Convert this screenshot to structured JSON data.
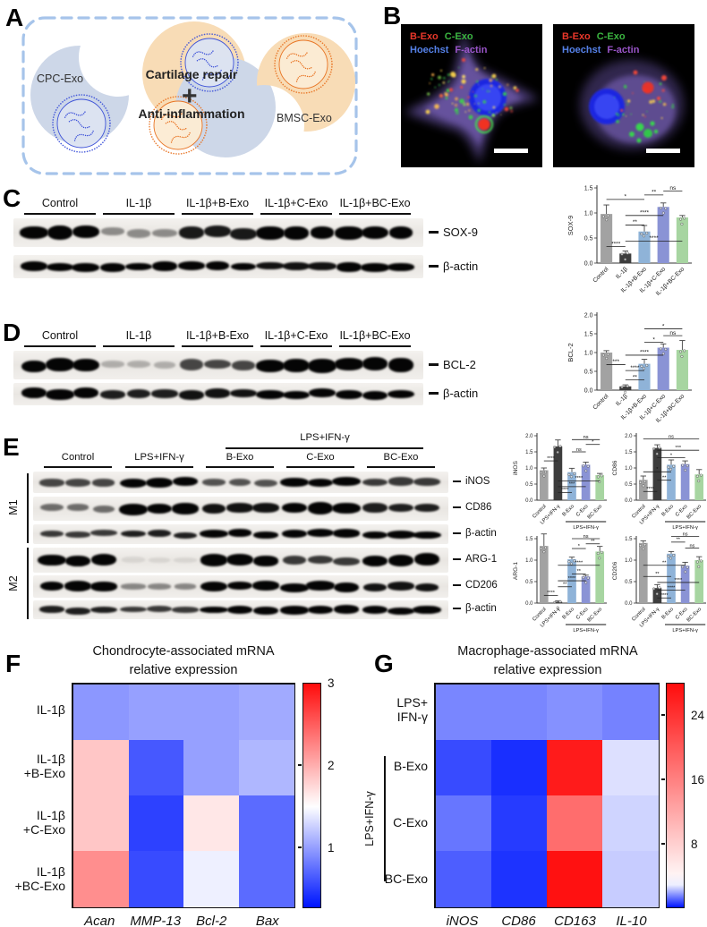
{
  "figure": {
    "bar_colors": [
      "#a2a2a2",
      "#3d3d3d",
      "#8fb3d8",
      "#8a93d5",
      "#a7d5a1"
    ],
    "panelA": {
      "letter": "A",
      "cpc_label": "CPC-Exo",
      "bmsc_label": "BMSC-Exo",
      "center_top": "Cartilage repair",
      "plus": "+",
      "center_bottom": "Anti-inflammation",
      "colors": {
        "blue_blob": "#cdd7e8",
        "orange_blob": "#f8dcb6",
        "blue_line": "#3a4fd8",
        "orange_line": "#e8711f",
        "blue_fill": "#dde4f2",
        "orange_fill": "#fcecd4",
        "border": "#a6c4ea"
      }
    },
    "panelB": {
      "letter": "B",
      "legend_line1": [
        {
          "text": "B-Exo",
          "color": "#e8372a"
        },
        {
          "text": "C-Exo",
          "color": "#3bb540"
        }
      ],
      "legend_line2": [
        {
          "text": "Hoechst",
          "color": "#5581e8"
        },
        {
          "text": "F-actin",
          "color": "#9a55c9"
        }
      ]
    },
    "panelC": {
      "letter": "C",
      "groups": [
        "Control",
        "IL-1β",
        "IL-1β+B-Exo",
        "IL-1β+C-Exo",
        "IL-1β+BC-Exo"
      ],
      "blot_rows": [
        {
          "label": "SOX-9",
          "intensities": [
            1,
            0.28,
            0.72,
            0.95,
            0.85
          ]
        },
        {
          "label": "β-actin",
          "intensities": [
            0.95,
            0.85,
            0.8,
            0.75,
            0.85
          ]
        }
      ],
      "chart": {
        "type": "bar",
        "ylabel": "SOX-9",
        "ymax": 1.5,
        "ystep": 0.5,
        "categories": [
          "Control",
          "IL-1β",
          "IL-1β+B-Exo",
          "IL-1β+C-Exo",
          "IL-1β+BC-Exo"
        ],
        "values": [
          0.98,
          0.19,
          0.63,
          1.12,
          0.91
        ],
        "errors": [
          0.18,
          0.05,
          0.12,
          0.08,
          0.04
        ],
        "sig": [
          {
            "a": 0,
            "b": 1,
            "y": 0.33,
            "t": "****"
          },
          {
            "a": 1,
            "b": 2,
            "y": 0.76,
            "t": "**"
          },
          {
            "a": 1,
            "b": 3,
            "y": 0.95,
            "t": "****"
          },
          {
            "a": 1,
            "b": 4,
            "y": 0.44,
            "t": "****"
          },
          {
            "a": 0,
            "b": 2,
            "y": 1.27,
            "t": "*"
          },
          {
            "a": 2,
            "b": 3,
            "y": 1.36,
            "t": "**"
          },
          {
            "a": 3,
            "b": 4,
            "y": 1.44,
            "t": "ns"
          }
        ]
      }
    },
    "panelD": {
      "letter": "D",
      "groups": [
        "Control",
        "IL-1β",
        "IL-1β+B-Exo",
        "IL-1β+C-Exo",
        "IL-1β+BC-Exo"
      ],
      "blot_rows": [
        {
          "label": "BCL-2",
          "intensities": [
            1,
            0.15,
            0.55,
            1,
            0.95
          ]
        },
        {
          "label": "β-actin",
          "intensities": [
            1,
            0.7,
            0.75,
            0.95,
            0.9
          ]
        }
      ],
      "chart": {
        "type": "bar",
        "ylabel": "BCL-2",
        "ymax": 2,
        "ystep": 0.5,
        "categories": [
          "Control",
          "IL-1β",
          "IL-1β+B-Exo",
          "IL-1β+C-Exo",
          "IL-1β+BC-Exo"
        ],
        "values": [
          1.0,
          0.1,
          0.7,
          1.13,
          1.07
        ],
        "errors": [
          0.05,
          0.04,
          0.12,
          0.1,
          0.25
        ],
        "sig": [
          {
            "a": 0,
            "b": 1,
            "y": 0.68,
            "t": "***"
          },
          {
            "a": 1,
            "b": 2,
            "y": 0.27,
            "t": "**"
          },
          {
            "a": 1,
            "b": 2,
            "y": 0.52,
            "t": "****"
          },
          {
            "a": 1,
            "b": 3,
            "y": 0.93,
            "t": "****"
          },
          {
            "a": 2,
            "b": 3,
            "y": 1.27,
            "t": "*"
          },
          {
            "a": 3,
            "b": 4,
            "y": 1.45,
            "t": "ns"
          },
          {
            "a": 2,
            "b": 4,
            "y": 1.63,
            "t": "*"
          }
        ]
      }
    },
    "panelE": {
      "letter": "E",
      "header": "LPS+IFN-γ",
      "m1_label": "M1",
      "m2_label": "M2",
      "groups": [
        "Control",
        "LPS+IFN-γ",
        "B-Exo",
        "C-Exo",
        "BC-Exo"
      ],
      "blot_rows": [
        {
          "label": "iNOS",
          "intensities": [
            0.55,
            1,
            0.5,
            0.95,
            0.6
          ]
        },
        {
          "label": "CD86",
          "intensities": [
            0.4,
            1,
            0.75,
            1,
            0.7
          ]
        },
        {
          "label": "β-actin",
          "intensities": [
            0.6,
            0.7,
            0.85,
            0.95,
            1
          ]
        },
        {
          "label": "ARG-1",
          "intensities": [
            1,
            0.05,
            0.95,
            0.6,
            1
          ]
        },
        {
          "label": "CD206",
          "intensities": [
            0.9,
            0.3,
            0.95,
            0.9,
            0.75
          ]
        },
        {
          "label": "β-actin",
          "intensities": [
            0.7,
            0.6,
            0.9,
            1,
            0.8
          ]
        }
      ],
      "charts": [
        {
          "type": "bar",
          "ylabel": "iNOS",
          "ymax": 2,
          "ystep": 0.5,
          "categories": [
            "Control",
            "LPS+IFN-γ",
            "B-Exo",
            "C-Exo",
            "BC-Exo"
          ],
          "values": [
            0.93,
            1.67,
            0.87,
            1.1,
            0.78
          ],
          "errors": [
            0.07,
            0.2,
            0.12,
            0.08,
            0.05
          ],
          "bracket": {
            "from": 2,
            "to": 4,
            "label": "LPS+IFN-γ"
          },
          "sig": [
            {
              "a": 0,
              "b": 1,
              "y": 1.22,
              "t": "****"
            },
            {
              "a": 1,
              "b": 2,
              "y": 0.24,
              "t": "****"
            },
            {
              "a": 1,
              "b": 3,
              "y": 0.42,
              "t": "***"
            },
            {
              "a": 1,
              "b": 4,
              "y": 0.6,
              "t": "****"
            },
            {
              "a": 2,
              "b": 3,
              "y": 1.5,
              "t": "ns"
            },
            {
              "a": 3,
              "b": 4,
              "y": 1.73,
              "t": "*"
            },
            {
              "a": 2,
              "b": 4,
              "y": 1.88,
              "t": "ns"
            }
          ]
        },
        {
          "type": "bar",
          "ylabel": "CD86",
          "ymax": 2,
          "ystep": 0.5,
          "categories": [
            "Control",
            "LPS+IFN-γ",
            "B-Exo",
            "C-Exo",
            "BC-Exo"
          ],
          "values": [
            0.63,
            1.62,
            1.1,
            1.12,
            0.8
          ],
          "errors": [
            0.12,
            0.1,
            0.15,
            0.1,
            0.15
          ],
          "bracket": {
            "from": 2,
            "to": 4,
            "label": "LPS+IFN-γ"
          },
          "sig": [
            {
              "a": 0,
              "b": 1,
              "y": 0.27,
              "t": "****"
            },
            {
              "a": 1,
              "b": 2,
              "y": 0.62,
              "t": "**"
            },
            {
              "a": 0,
              "b": 2,
              "y": 0.88,
              "t": "*"
            },
            {
              "a": 1,
              "b": 3,
              "y": 1.32,
              "t": "*"
            },
            {
              "a": 1,
              "b": 4,
              "y": 1.55,
              "t": "***"
            },
            {
              "a": 0,
              "b": 4,
              "y": 1.9,
              "t": "ns"
            }
          ]
        },
        {
          "type": "bar",
          "ylabel": "ARG-1",
          "ymax": 1.5,
          "ystep": 0.5,
          "categories": [
            "Control",
            "LPS+IFN-γ",
            "B-Exo",
            "C-Exo",
            "BC-Exo"
          ],
          "values": [
            1.33,
            0.03,
            1.02,
            0.62,
            1.2
          ],
          "errors": [
            0.28,
            0.02,
            0.05,
            0.03,
            0.12
          ],
          "bracket": {
            "from": 2,
            "to": 4,
            "label": "LPS+IFN-γ"
          },
          "sig": [
            {
              "a": 0,
              "b": 1,
              "y": 0.18,
              "t": "****"
            },
            {
              "a": 1,
              "b": 2,
              "y": 0.38,
              "t": "**"
            },
            {
              "a": 1,
              "b": 3,
              "y": 0.52,
              "t": "****"
            },
            {
              "a": 2,
              "b": 3,
              "y": 0.68,
              "t": "**"
            },
            {
              "a": 1,
              "b": 4,
              "y": 0.88,
              "t": "****"
            },
            {
              "a": 2,
              "b": 3,
              "y": 1.27,
              "t": "*"
            },
            {
              "a": 3,
              "b": 4,
              "y": 1.38,
              "t": "**"
            },
            {
              "a": 2,
              "b": 4,
              "y": 1.5,
              "t": "ns"
            }
          ]
        },
        {
          "type": "bar",
          "ylabel": "CD206",
          "ymax": 1.5,
          "ystep": 0.5,
          "categories": [
            "Control",
            "LPS+IFN-γ",
            "B-Exo",
            "C-Exo",
            "BC-Exo"
          ],
          "values": [
            1.4,
            0.35,
            1.15,
            0.87,
            1.0
          ],
          "errors": [
            0.05,
            0.08,
            0.05,
            0.08,
            0.08
          ],
          "bracket": {
            "from": 2,
            "to": 4,
            "label": "LPS+IFN-γ"
          },
          "sig": [
            {
              "a": 1,
              "b": 2,
              "y": 0.12,
              "t": "****"
            },
            {
              "a": 1,
              "b": 3,
              "y": 0.3,
              "t": "****"
            },
            {
              "a": 1,
              "b": 4,
              "y": 0.48,
              "t": "****"
            },
            {
              "a": 0,
              "b": 2,
              "y": 0.62,
              "t": "**"
            },
            {
              "a": 0,
              "b": 3,
              "y": 0.88,
              "t": "**"
            },
            {
              "a": 2,
              "b": 3,
              "y": 1.42,
              "t": "**"
            },
            {
              "a": 3,
              "b": 4,
              "y": 1.28,
              "t": "ns"
            },
            {
              "a": 2,
              "b": 4,
              "y": 1.55,
              "t": "ns"
            }
          ]
        }
      ]
    },
    "panelF": {
      "letter": "F",
      "title_line1": "Chondrocyte-associated mRNA",
      "title_line2": "relative expression",
      "type": "heatmap",
      "row_labels": [
        [
          "IL-1β"
        ],
        [
          "IL-1β",
          "+B-Exo"
        ],
        [
          "IL-1β",
          "+C-Exo"
        ],
        [
          "IL-1β",
          "+BC-Exo"
        ]
      ],
      "col_labels": [
        "Acan",
        "MMP-13",
        "Bcl-2",
        "Bax"
      ],
      "values": [
        [
          0.95,
          1.0,
          1.0,
          1.05
        ],
        [
          1.85,
          0.62,
          1.0,
          1.12
        ],
        [
          1.85,
          0.5,
          1.65,
          0.72
        ],
        [
          2.2,
          0.55,
          1.42,
          0.72
        ]
      ],
      "scale": {
        "min": 0.26,
        "white": 1.5,
        "max": 3.0
      },
      "cbar_ticks": [
        {
          "v": 3,
          "label": "3"
        },
        {
          "v": 2,
          "label": "2"
        },
        {
          "v": 1,
          "label": "1"
        }
      ]
    },
    "panelG": {
      "letter": "G",
      "title_line1": "Macrophage-associated mRNA",
      "title_line2": "relative expression",
      "type": "heatmap",
      "row_labels": [
        [
          "LPS+",
          "IFN-γ"
        ],
        [
          "B-Exo"
        ],
        [
          "C-Exo"
        ],
        [
          "BC-Exo"
        ]
      ],
      "col_labels": [
        "iNOS",
        "CD86",
        "CD163",
        "IL-10"
      ],
      "bracket_label": "LPS+IFN-γ",
      "values": [
        [
          1.45,
          1.45,
          1.6,
          1.4
        ],
        [
          0.7,
          0.35,
          26.5,
          2.6
        ],
        [
          1.25,
          0.5,
          18,
          2.45
        ],
        [
          0.95,
          0.4,
          27.5,
          2.35
        ]
      ],
      "scale": {
        "min": 0,
        "white": 3.0,
        "max": 28
      },
      "cbar_ticks": [
        {
          "v": 24,
          "label": "24"
        },
        {
          "v": 16,
          "label": "16"
        },
        {
          "v": 8,
          "label": "8"
        }
      ]
    }
  }
}
